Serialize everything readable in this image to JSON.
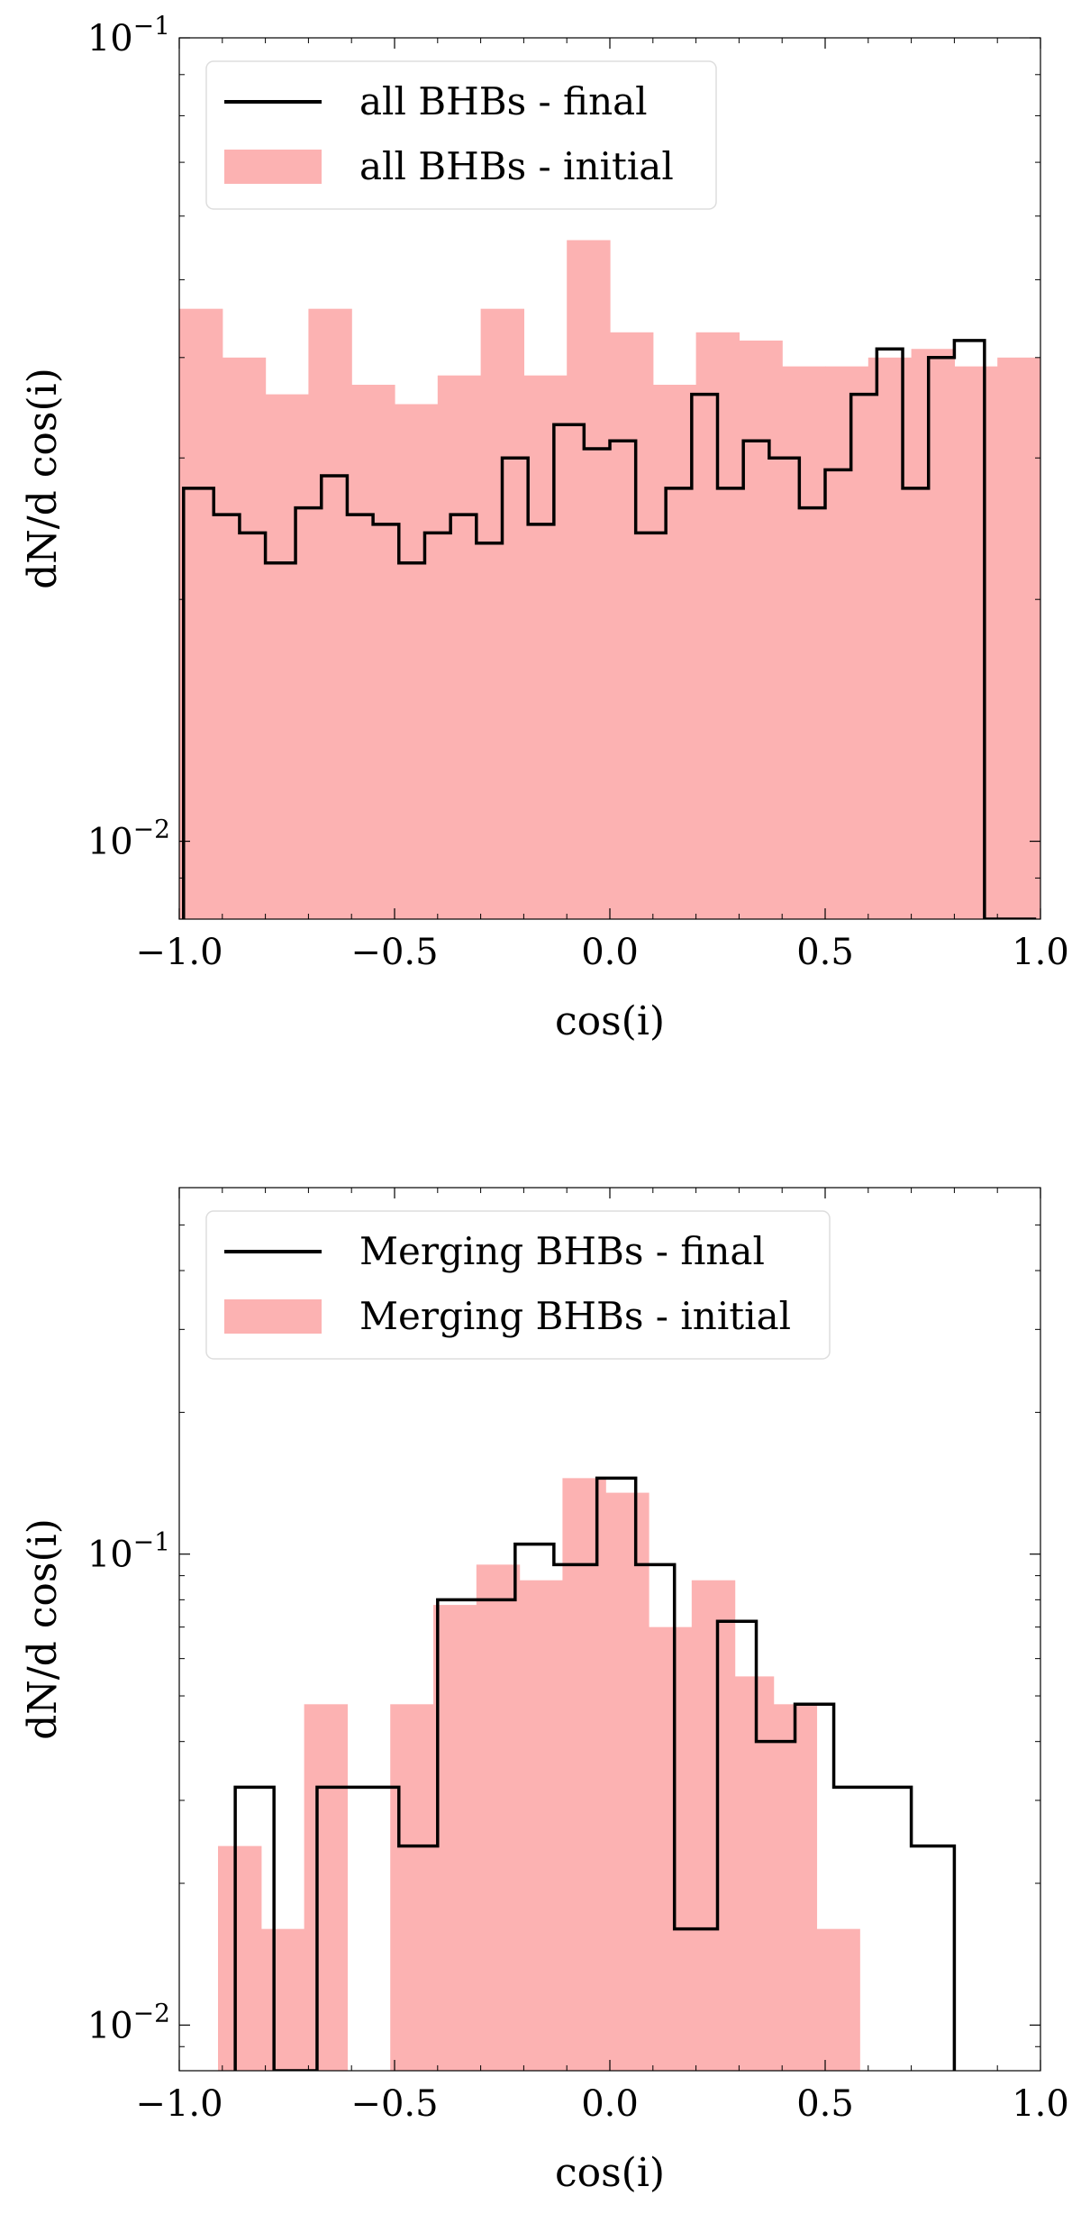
{
  "chart_data": [
    {
      "type": "histogram",
      "xlabel": "cos(i)",
      "ylabel": "dN/d cos(i)",
      "xlim": [
        -1.0,
        1.0
      ],
      "ylim": [
        0.008,
        0.1
      ],
      "yscale": "log",
      "x_ticks": [
        "−1.0",
        "−0.5",
        "0.0",
        "0.5",
        "1.0"
      ],
      "y_ticks": [
        {
          "value": 0.1,
          "base": "10",
          "exp": "−1"
        },
        {
          "value": 0.01,
          "base": "10",
          "exp": "−2"
        }
      ],
      "legend_position": "top-left",
      "series": [
        {
          "name": "all BHBs - final",
          "style": "step",
          "color": "#000000",
          "edges": [
            -0.99,
            -0.92,
            -0.86,
            -0.8,
            -0.73,
            -0.67,
            -0.61,
            -0.55,
            -0.49,
            -0.43,
            -0.37,
            -0.31,
            -0.25,
            -0.19,
            -0.13,
            -0.06,
            0.0,
            0.06,
            0.13,
            0.19,
            0.25,
            0.31,
            0.37,
            0.44,
            0.5,
            0.56,
            0.62,
            0.68,
            0.74,
            0.8,
            0.87,
            0.93,
            0.99
          ],
          "values": [
            0.0275,
            0.0255,
            0.0242,
            0.0222,
            0.026,
            0.0285,
            0.0255,
            0.0248,
            0.0222,
            0.0242,
            0.0255,
            0.0235,
            0.03,
            0.0248,
            0.033,
            0.0308,
            0.0315,
            0.0242,
            0.0275,
            0.036,
            0.0275,
            0.0315,
            0.03,
            0.026,
            0.029,
            0.036,
            0.041,
            0.0275,
            0.04,
            0.042,
            0.0,
            0.0
          ]
        },
        {
          "name": "all BHBs - initial",
          "style": "filled",
          "color": "#fcb2b2",
          "edges": [
            -1.0,
            -0.9,
            -0.8,
            -0.7,
            -0.6,
            -0.5,
            -0.4,
            -0.3,
            -0.2,
            -0.1,
            0.0,
            0.1,
            0.2,
            0.3,
            0.4,
            0.5,
            0.6,
            0.7,
            0.8,
            0.9,
            1.0
          ],
          "values": [
            0.046,
            0.04,
            0.036,
            0.046,
            0.037,
            0.035,
            0.038,
            0.046,
            0.038,
            0.056,
            0.043,
            0.037,
            0.043,
            0.042,
            0.039,
            0.039,
            0.04,
            0.041,
            0.039,
            0.04
          ]
        }
      ]
    },
    {
      "type": "histogram",
      "xlabel": "cos(i)",
      "ylabel": "dN/d cos(i)",
      "xlim": [
        -1.0,
        1.0
      ],
      "ylim": [
        0.008,
        0.6
      ],
      "yscale": "log",
      "x_ticks": [
        "−1.0",
        "−0.5",
        "0.0",
        "0.5",
        "1.0"
      ],
      "y_ticks": [
        {
          "value": 0.1,
          "base": "10",
          "exp": "−1"
        },
        {
          "value": 0.01,
          "base": "10",
          "exp": "−2"
        }
      ],
      "legend_position": "top-left",
      "series": [
        {
          "name": "Merging BHBs - final",
          "style": "step",
          "color": "#000000",
          "edges": [
            -0.87,
            -0.78,
            -0.68,
            -0.49,
            -0.4,
            -0.22,
            -0.13,
            -0.03,
            0.06,
            0.15,
            0.25,
            0.34,
            0.43,
            0.52,
            0.7,
            0.8
          ],
          "values": [
            0.032,
            0.008,
            0.032,
            0.024,
            0.08,
            0.105,
            0.095,
            0.145,
            0.095,
            0.016,
            0.072,
            0.04,
            0.048,
            0.032,
            0.024
          ]
        },
        {
          "name": "Merging BHBs - initial",
          "style": "filled",
          "color": "#fcb2b2",
          "edges": [
            -0.91,
            -0.81,
            -0.71,
            -0.61,
            -0.51,
            -0.41,
            -0.31,
            -0.21,
            -0.11,
            -0.01,
            0.09,
            0.19,
            0.29,
            0.38,
            0.48,
            0.58
          ],
          "values": [
            0.024,
            0.016,
            0.048,
            0.0,
            0.048,
            0.078,
            0.095,
            0.088,
            0.145,
            0.135,
            0.07,
            0.088,
            0.055,
            0.048,
            0.016
          ]
        }
      ]
    }
  ]
}
